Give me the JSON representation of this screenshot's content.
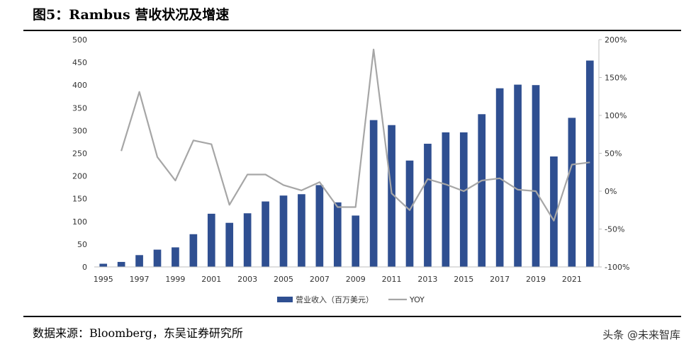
{
  "figure": {
    "title": "图5：Rambus 营收状况及增速",
    "source": "数据来源：Bloomberg，东吴证券研究所",
    "watermark": "头条 @未来智库"
  },
  "chart_data": {
    "type": "bar",
    "categories": [
      "1995",
      "1996",
      "1997",
      "1998",
      "1999",
      "2000",
      "2001",
      "2002",
      "2003",
      "2004",
      "2005",
      "2006",
      "2007",
      "2008",
      "2009",
      "2010",
      "2011",
      "2012",
      "2013",
      "2014",
      "2015",
      "2016",
      "2017",
      "2018",
      "2019",
      "2020",
      "2021",
      "2022"
    ],
    "x_tick_labels": [
      "1995",
      "1997",
      "1999",
      "2001",
      "2003",
      "2005",
      "2007",
      "2009",
      "2011",
      "2013",
      "2015",
      "2017",
      "2019",
      "2021"
    ],
    "series": [
      {
        "name": "营业收入（百万美元）",
        "type": "bar",
        "axis": "left",
        "color": "#2f4f91",
        "values": [
          7,
          11,
          26,
          38,
          43,
          72,
          117,
          97,
          118,
          144,
          157,
          160,
          180,
          142,
          113,
          323,
          312,
          234,
          271,
          296,
          296,
          336,
          393,
          401,
          400,
          243,
          328,
          454
        ]
      },
      {
        "name": "YOY",
        "type": "line",
        "axis": "right",
        "color": "#a6a6a6",
        "values": [
          null,
          53,
          131,
          45,
          14,
          67,
          62,
          -18,
          22,
          22,
          8,
          1,
          12,
          -21,
          -21,
          187,
          -3,
          -25,
          16,
          9,
          0,
          14,
          17,
          2,
          0,
          -39,
          35,
          38
        ]
      }
    ],
    "y_left": {
      "min": 0,
      "max": 500,
      "step": 50,
      "ticks": [
        "0",
        "50",
        "100",
        "150",
        "200",
        "250",
        "300",
        "350",
        "400",
        "450",
        "500"
      ]
    },
    "y_right": {
      "min": -100,
      "max": 200,
      "step": 50,
      "ticks": [
        "-100%",
        "-50%",
        "0%",
        "50%",
        "100%",
        "150%",
        "200%"
      ]
    },
    "grid": false,
    "legend_position": "bottom-center",
    "legend": [
      "营业收入（百万美元）",
      "YOY"
    ]
  }
}
